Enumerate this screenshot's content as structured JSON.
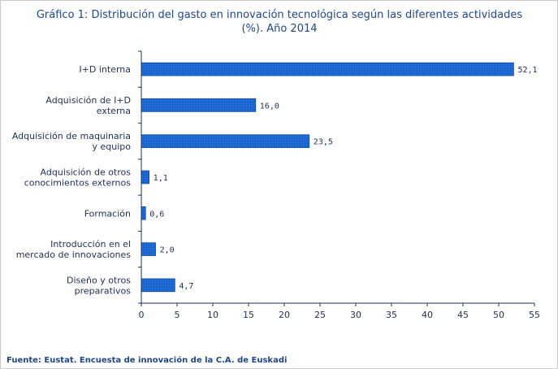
{
  "chart_data": {
    "type": "bar",
    "orientation": "horizontal",
    "title_lines": [
      "Gráfico 1: Distribución del gasto en innovación tecnológica según las diferentes actividades",
      "(%). Año 2014"
    ],
    "categories": [
      [
        "I+D interna"
      ],
      [
        "Adquisición de I+D",
        "externa"
      ],
      [
        "Adquisición de maquinaria",
        "y equipo"
      ],
      [
        "Adquisición de otros",
        "conocimientos externos"
      ],
      [
        "Formación"
      ],
      [
        "Introducción en el",
        "mercado de innovaciones"
      ],
      [
        "Diseño y otros",
        "preparativos"
      ]
    ],
    "values": [
      52.1,
      16.0,
      23.5,
      1.1,
      0.6,
      2.0,
      4.7
    ],
    "value_labels": [
      "52,1",
      "16,0",
      "23,5",
      "1,1",
      "0,6",
      "2,0",
      "4,7"
    ],
    "xlim": [
      0,
      55
    ],
    "x_ticks": [
      "0",
      "5",
      "10",
      "15",
      "20",
      "25",
      "30",
      "35",
      "40",
      "45",
      "50",
      "55"
    ],
    "xlabel": "",
    "ylabel": "",
    "grid": false,
    "legend": "none",
    "source": "Fuente: Eustat. Encuesta de innovación de la C.A. de Euskadi"
  },
  "colors": {
    "bar_fill": "#1560c8",
    "bar_stroke": "#0a3f8f",
    "bar_hatch": "#4a90e8",
    "axis": "#1f2f55",
    "title": "#1f4788"
  }
}
